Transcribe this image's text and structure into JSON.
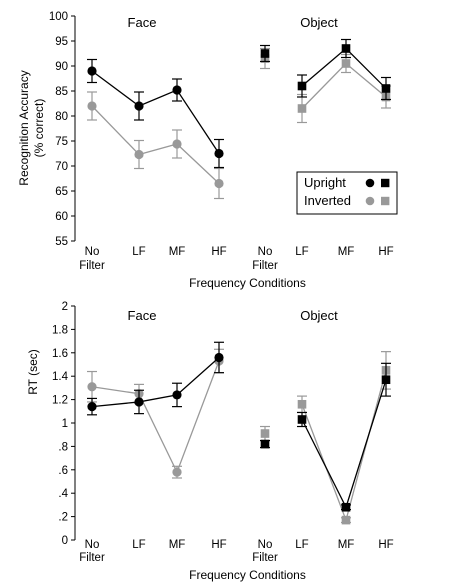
{
  "chart_data": [
    {
      "type": "line",
      "ylabel": [
        "Recognition Accuracy",
        "(% correct)"
      ],
      "xlabel": "Frequency Conditions",
      "ylim": [
        55,
        100
      ],
      "yticks": [
        "55",
        "60",
        "65",
        "70",
        "75",
        "80",
        "85",
        "90",
        "95",
        "100"
      ],
      "panels": [
        {
          "title": "Face",
          "marker": "circle",
          "categories": [
            [
              "No",
              "Filter"
            ],
            [
              "LF"
            ],
            [
              "MF"
            ],
            [
              "HF"
            ]
          ],
          "series": [
            {
              "name": "Upright",
              "color": "#000000",
              "values": [
                89.0,
                82.0,
                85.2,
                72.5
              ],
              "errors": [
                2.3,
                2.8,
                2.2,
                2.8
              ]
            },
            {
              "name": "Inverted",
              "color": "#999999",
              "values": [
                82.0,
                72.3,
                74.4,
                66.5
              ],
              "errors": [
                2.8,
                2.8,
                2.8,
                3.0
              ]
            }
          ]
        },
        {
          "title": "Object",
          "marker": "square",
          "categories": [
            [
              "No",
              "Filter"
            ],
            [
              "LF"
            ],
            [
              "MF"
            ],
            [
              "HF"
            ]
          ],
          "series": [
            {
              "name": "Upright",
              "color": "#000000",
              "values": [
                92.5,
                86.0,
                93.5,
                85.5
              ],
              "errors": [
                1.6,
                2.2,
                1.8,
                2.2
              ]
            },
            {
              "name": "Inverted",
              "color": "#999999",
              "values": [
                91.5,
                81.5,
                90.5,
                83.8
              ],
              "errors": [
                2.0,
                2.8,
                1.8,
                2.2
              ]
            }
          ]
        }
      ],
      "legend": {
        "position": "bottom-right",
        "labels": [
          "Upright",
          "Inverted"
        ]
      }
    },
    {
      "type": "line",
      "ylabel": [
        "RT (sec)"
      ],
      "xlabel": "Frequency Conditions",
      "ylim": [
        0,
        2
      ],
      "yticks": [
        "0",
        ".2",
        ".4",
        ".6",
        ".8",
        "1",
        "1.2",
        "1.4",
        "1.6",
        "1.8",
        "2"
      ],
      "panels": [
        {
          "title": "Face",
          "marker": "circle",
          "categories": [
            [
              "No",
              "Filter"
            ],
            [
              "LF"
            ],
            [
              "MF"
            ],
            [
              "HF"
            ]
          ],
          "series": [
            {
              "name": "Upright",
              "color": "#000000",
              "values": [
                1.14,
                1.18,
                1.24,
                1.56
              ],
              "errors": [
                0.07,
                0.1,
                0.1,
                0.13
              ]
            },
            {
              "name": "Inverted",
              "color": "#999999",
              "values": [
                1.31,
                1.25,
                0.58,
                1.53
              ],
              "errors": [
                0.13,
                0.08,
                0.05,
                0.1
              ]
            }
          ]
        },
        {
          "title": "Object",
          "marker": "square",
          "categories": [
            [
              "No",
              "Filter"
            ],
            [
              "LF"
            ],
            [
              "MF"
            ],
            [
              "HF"
            ]
          ],
          "series": [
            {
              "name": "Upright",
              "color": "#000000",
              "values": [
                0.82,
                1.03,
                0.28,
                1.37
              ],
              "errors": [
                0.03,
                0.06,
                0.02,
                0.14
              ]
            },
            {
              "name": "Inverted",
              "color": "#999999",
              "values": [
                0.91,
                1.16,
                0.17,
                1.45
              ],
              "errors": [
                0.06,
                0.07,
                0.02,
                0.16
              ]
            }
          ]
        }
      ]
    }
  ]
}
